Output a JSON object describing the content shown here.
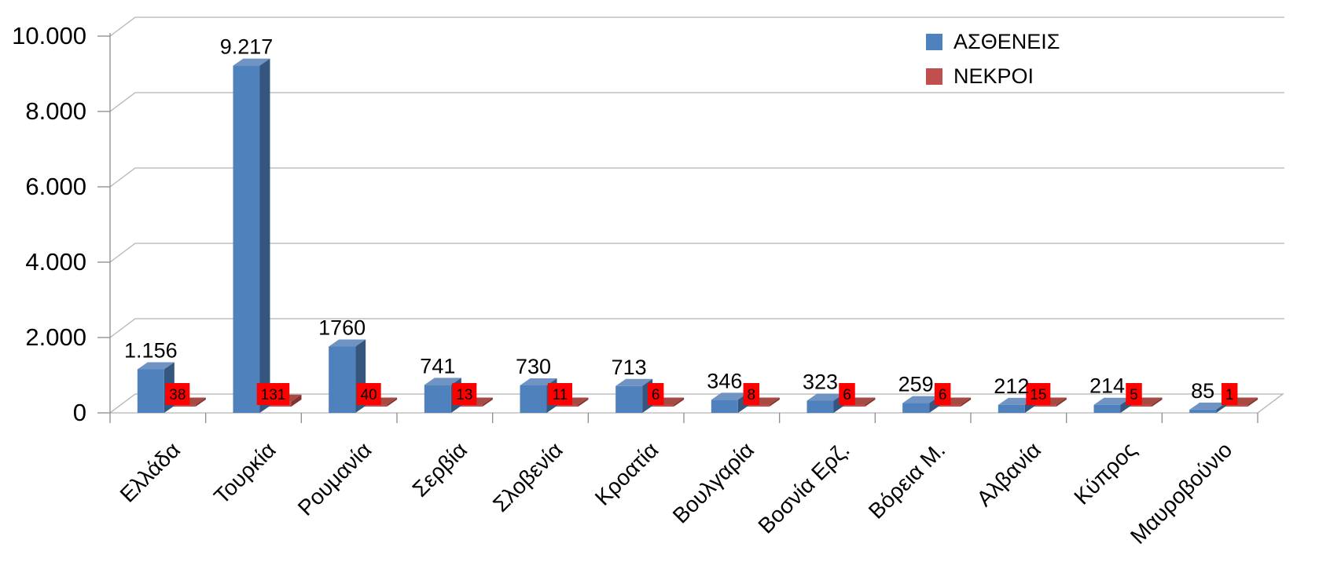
{
  "chart_data": {
    "type": "bar",
    "style": "3d-column",
    "categories": [
      "Ελλάδα",
      "Τουρκία",
      "Ρουμανία",
      "Σερβία",
      "Σλοβενία",
      "Κροατία",
      "Βουλγαρία",
      "Βοσνία Ερζ.",
      "Βόρεια Μ.",
      "Αλβανία",
      "Κύπρος",
      "Μαυροβούνιο"
    ],
    "series": [
      {
        "name": "ΑΣΘΕΝΕΙΣ",
        "color": "#4f81bd",
        "values": [
          1156,
          9217,
          1760,
          741,
          730,
          713,
          346,
          323,
          259,
          212,
          214,
          85
        ],
        "value_labels": [
          "1.156",
          "9.217",
          "1760",
          "741",
          "730",
          "713",
          "346",
          "323",
          "259",
          "212",
          "214",
          "85"
        ]
      },
      {
        "name": "ΝΕΚΡΟΙ",
        "color": "#c0504d",
        "value_label_bg": "#ff0000",
        "values": [
          38,
          131,
          40,
          13,
          11,
          6,
          8,
          6,
          6,
          15,
          5,
          1
        ],
        "value_labels": [
          "38",
          "131",
          "40",
          "13",
          "11",
          "6",
          "8",
          "6",
          "6",
          "15",
          "5",
          "1"
        ]
      }
    ],
    "y_axis": {
      "tick_labels": [
        "0",
        "2.000",
        "4.000",
        "6.000",
        "8.000",
        "10.000"
      ],
      "tick_values": [
        0,
        2000,
        4000,
        6000,
        8000,
        10000
      ],
      "min": 0,
      "max": 10000,
      "grid": true
    },
    "legend": {
      "position": "top-right"
    },
    "colors": {
      "blue_top": "#6f94c4",
      "blue_side": "#35577f",
      "red_top": "#a84a44",
      "red_side": "#83322f",
      "gridline": "#b3b3b3",
      "axis": "#8c8c8c",
      "label_text": "#000000"
    }
  }
}
